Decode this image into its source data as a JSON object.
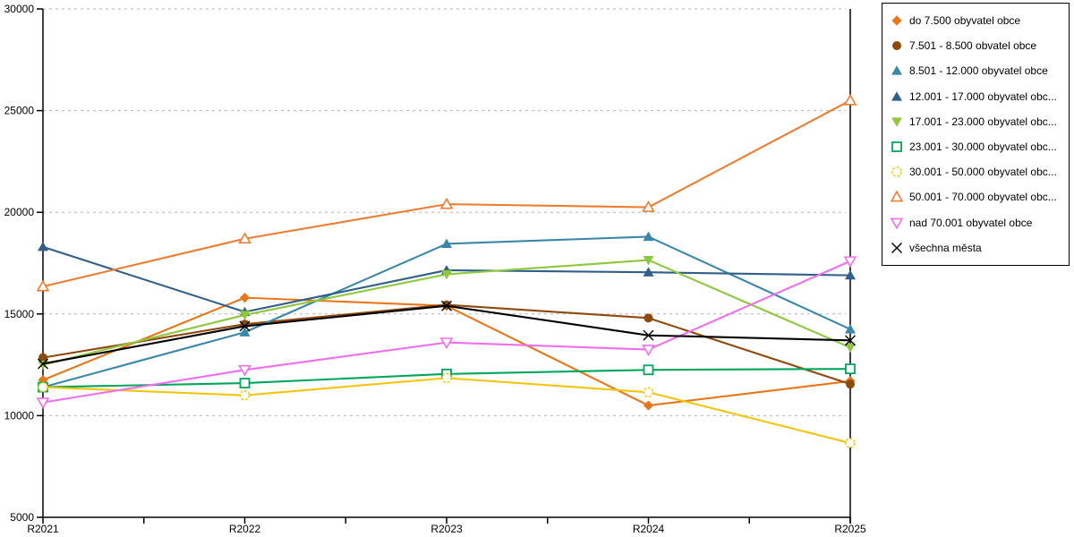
{
  "chart_data": {
    "type": "line",
    "title": "",
    "xlabel": "",
    "ylabel": "",
    "categories": [
      "R2021",
      "R2022",
      "R2023",
      "R2024",
      "R2025"
    ],
    "y_axis": {
      "min": 5000,
      "max": 30000,
      "step": 5000,
      "tick_labels": [
        "5000",
        "10000",
        "15000",
        "20000",
        "25000",
        "30000"
      ]
    },
    "grid": "horizontal-dashed",
    "grid_color": "#b3b3b3",
    "axis_color": "#000000",
    "legend_position": "top-right",
    "series": [
      {
        "name": "do 7.500 obyvatel obce",
        "color": "#E8761B",
        "marker": "diamond",
        "filled": true,
        "dashed": false,
        "values": [
          11750,
          15800,
          15400,
          10500,
          11700
        ]
      },
      {
        "name": "7.501 - 8.500 obvatel obce",
        "color": "#8E4A0D",
        "marker": "circle",
        "filled": true,
        "dashed": false,
        "values": [
          12850,
          14500,
          15450,
          14800,
          11550
        ]
      },
      {
        "name": "8.501 - 12.000 obyvatel obce",
        "color": "#3A87A8",
        "marker": "triangle-up",
        "filled": true,
        "dashed": false,
        "values": [
          11400,
          14100,
          18450,
          18800,
          14250
        ]
      },
      {
        "name": "12.001 - 17.000 obyvatel obc...",
        "color": "#305F8A",
        "marker": "triangle-up",
        "filled": true,
        "dashed": false,
        "values": [
          18300,
          15100,
          17150,
          17050,
          16900
        ]
      },
      {
        "name": "17.001 - 23.000 obyvatel obc...",
        "color": "#8FC73E",
        "marker": "triangle-down",
        "filled": true,
        "dashed": false,
        "values": [
          12500,
          14950,
          16950,
          17650,
          13350
        ]
      },
      {
        "name": "23.001 - 30.000 obyvatel obc...",
        "color": "#00A65C",
        "marker": "square",
        "filled": false,
        "dashed": false,
        "values": [
          11400,
          11600,
          12050,
          12250,
          12300
        ]
      },
      {
        "name": "30.001 - 50.000 obyvatel obc...",
        "color": "#F2C50F",
        "marker": "circle",
        "filled": false,
        "dashed": true,
        "values": [
          11400,
          11000,
          11850,
          11150,
          8650
        ]
      },
      {
        "name": "50.001 - 70.000 obyvatel obc...",
        "color": "#ED7D31",
        "marker": "triangle-up",
        "filled": false,
        "dashed": false,
        "values": [
          16350,
          18700,
          20400,
          20250,
          25500
        ]
      },
      {
        "name": "nad 70.001 obyvatel obce",
        "color": "#EE6FEE",
        "marker": "triangle-down",
        "filled": false,
        "dashed": false,
        "values": [
          10650,
          12250,
          13600,
          13250,
          17600
        ]
      },
      {
        "name": "všechna města",
        "color": "#000000",
        "marker": "x",
        "filled": false,
        "dashed": false,
        "values": [
          12550,
          14400,
          15400,
          13950,
          13700
        ]
      }
    ]
  }
}
